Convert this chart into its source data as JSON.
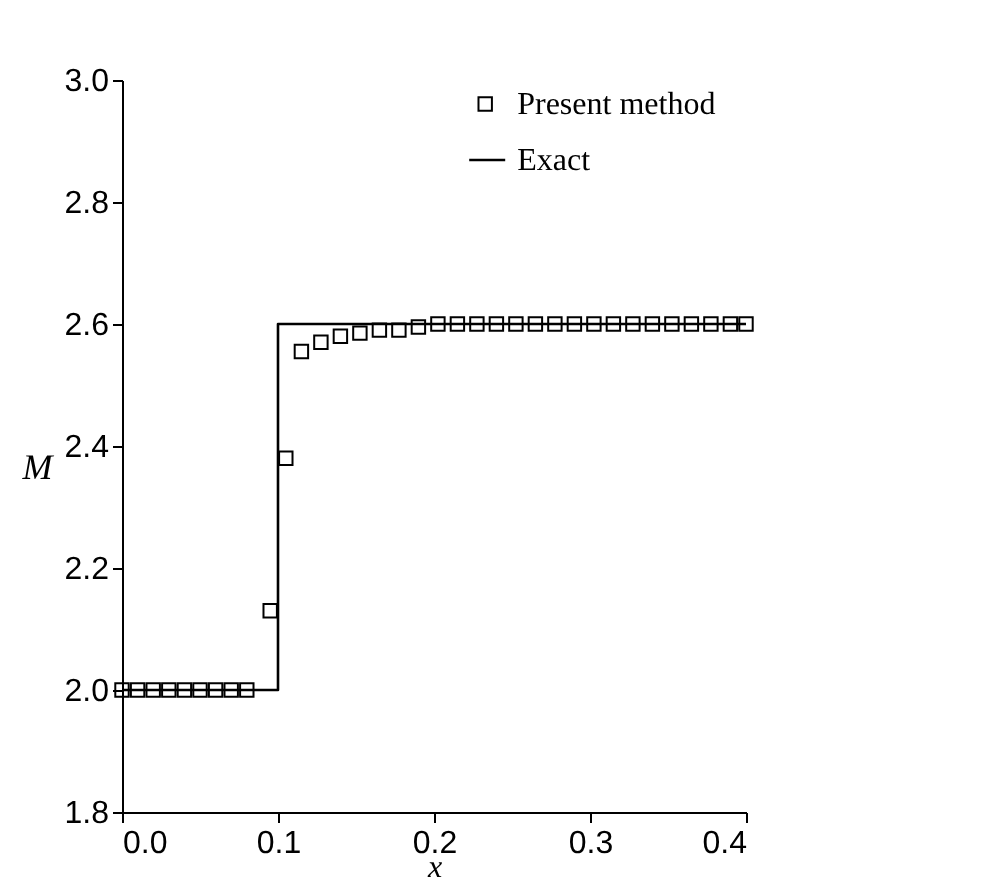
{
  "chart_data": {
    "type": "scatter",
    "xlabel": "x",
    "ylabel": "M",
    "xlim": [
      0,
      0.4
    ],
    "ylim": [
      1.8,
      3.0
    ],
    "xticks": [
      {
        "value": 0,
        "label": "0.0"
      },
      0.1,
      0.2,
      0.3,
      0.4
    ],
    "yticks": [
      1.8,
      {
        "value": 2,
        "label": "2.0"
      },
      2.2,
      2.4,
      2.6,
      2.8,
      {
        "value": 3,
        "label": "3.0"
      }
    ],
    "grid": false,
    "legend": "top right",
    "series": [
      {
        "name": "Present method",
        "marker": "square",
        "color": "#000000",
        "x": [
          0,
          0.01,
          0.02,
          0.03,
          0.04,
          0.05,
          0.06,
          0.07,
          0.08,
          0.095,
          0.105,
          0.115,
          0.1275,
          0.14,
          0.1525,
          0.165,
          0.1775,
          0.19,
          0.2025,
          0.215,
          0.2275,
          0.24,
          0.2525,
          0.265,
          0.2775,
          0.29,
          0.3025,
          0.315,
          0.3275,
          0.34,
          0.3525,
          0.365,
          0.3775,
          0.39,
          0.4
        ],
        "values": [
          2.0,
          2.0,
          2.0,
          2.0,
          2.0,
          2.0,
          2.0,
          2.0,
          2.0,
          2.13,
          2.38,
          2.555,
          2.57,
          2.58,
          2.585,
          2.59,
          2.59,
          2.595,
          2.6,
          2.6,
          2.6,
          2.6,
          2.6,
          2.6,
          2.6,
          2.6,
          2.6,
          2.6,
          2.6,
          2.6,
          2.6,
          2.6,
          2.6,
          2.6,
          2.6
        ]
      },
      {
        "name": "Exact",
        "type": "line",
        "line_style": "solid",
        "color": "#000000",
        "x": [
          0,
          0.1,
          0.1,
          0.4
        ],
        "values": [
          2.0,
          2.0,
          2.6,
          2.6
        ]
      }
    ]
  }
}
